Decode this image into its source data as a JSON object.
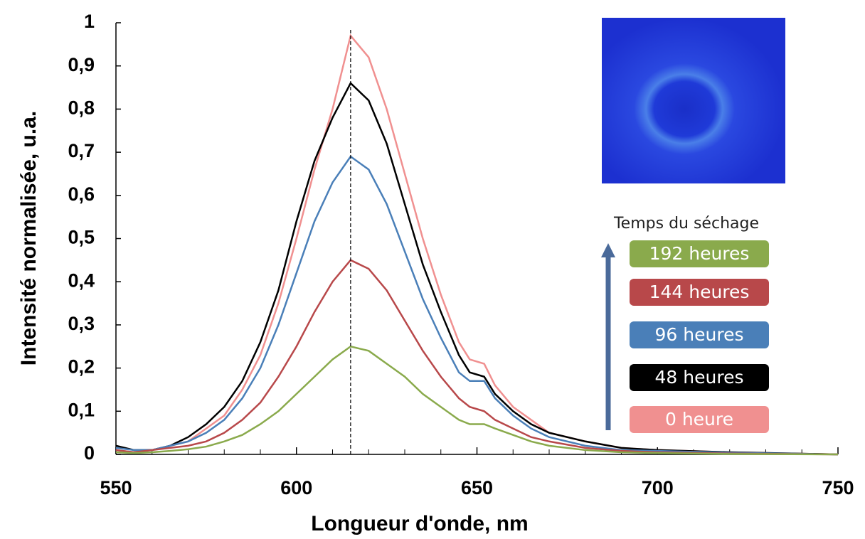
{
  "chart_data": {
    "type": "line",
    "xlabel": "Longueur d'onde, nm",
    "ylabel": "Intensité normalisée, u.a.",
    "legend_title": "Temps du séchage",
    "reference_line": 615,
    "x": [
      550,
      555,
      560,
      565,
      570,
      575,
      580,
      585,
      590,
      595,
      600,
      605,
      610,
      615,
      620,
      625,
      630,
      635,
      640,
      645,
      648,
      652,
      655,
      660,
      665,
      670,
      680,
      690,
      700,
      720,
      750
    ],
    "series": [
      {
        "name": "192 heures",
        "color": "#8aaa4c",
        "values": [
          0.005,
          0.003,
          0.005,
          0.008,
          0.012,
          0.018,
          0.03,
          0.045,
          0.07,
          0.1,
          0.14,
          0.18,
          0.22,
          0.25,
          0.24,
          0.21,
          0.18,
          0.14,
          0.11,
          0.08,
          0.07,
          0.07,
          0.06,
          0.045,
          0.03,
          0.02,
          0.01,
          0.005,
          0.003,
          0.001,
          0
        ]
      },
      {
        "name": "144 heures",
        "color": "#b8484a",
        "values": [
          0.01,
          0.005,
          0.01,
          0.015,
          0.02,
          0.03,
          0.05,
          0.08,
          0.12,
          0.18,
          0.25,
          0.33,
          0.4,
          0.45,
          0.43,
          0.38,
          0.31,
          0.24,
          0.18,
          0.13,
          0.11,
          0.1,
          0.08,
          0.06,
          0.04,
          0.03,
          0.015,
          0.008,
          0.005,
          0.002,
          0
        ]
      },
      {
        "name": "96 heures",
        "color": "#4a7fb8",
        "values": [
          0.015,
          0.01,
          0.01,
          0.02,
          0.03,
          0.05,
          0.08,
          0.13,
          0.2,
          0.3,
          0.42,
          0.54,
          0.63,
          0.69,
          0.66,
          0.58,
          0.47,
          0.36,
          0.27,
          0.19,
          0.17,
          0.17,
          0.13,
          0.09,
          0.06,
          0.04,
          0.02,
          0.01,
          0.008,
          0.004,
          0
        ]
      },
      {
        "name": "48 heures",
        "color": "#000000",
        "values": [
          0.02,
          0.01,
          0.01,
          0.02,
          0.04,
          0.07,
          0.11,
          0.17,
          0.26,
          0.38,
          0.54,
          0.68,
          0.78,
          0.86,
          0.82,
          0.72,
          0.58,
          0.44,
          0.33,
          0.23,
          0.19,
          0.18,
          0.14,
          0.1,
          0.07,
          0.05,
          0.03,
          0.015,
          0.01,
          0.005,
          0
        ]
      },
      {
        "name": "0 heure",
        "color": "#f09090",
        "values": [
          0.01,
          0.005,
          0.01,
          0.02,
          0.03,
          0.06,
          0.09,
          0.15,
          0.23,
          0.35,
          0.5,
          0.66,
          0.8,
          0.97,
          0.92,
          0.8,
          0.65,
          0.5,
          0.37,
          0.26,
          0.22,
          0.21,
          0.16,
          0.11,
          0.08,
          0.05,
          0.03,
          0.015,
          0.01,
          0.005,
          0
        ]
      }
    ],
    "xlim": [
      550,
      750
    ],
    "xticks": [
      550,
      600,
      650,
      700,
      750
    ],
    "ylim": [
      0,
      1
    ],
    "yticks": [
      0,
      {
        "value": 0.1,
        "label": "0,1"
      },
      {
        "value": 0.2,
        "label": "0,2"
      },
      {
        "value": 0.3,
        "label": "0,3"
      },
      {
        "value": 0.4,
        "label": "0,4"
      },
      {
        "value": 0.5,
        "label": "0,5"
      },
      {
        "value": 0.6,
        "label": "0,6"
      },
      {
        "value": 0.7,
        "label": "0,7"
      },
      {
        "value": 0.8,
        "label": "0,8"
      },
      {
        "value": 0.9,
        "label": "0,9"
      },
      1
    ]
  }
}
